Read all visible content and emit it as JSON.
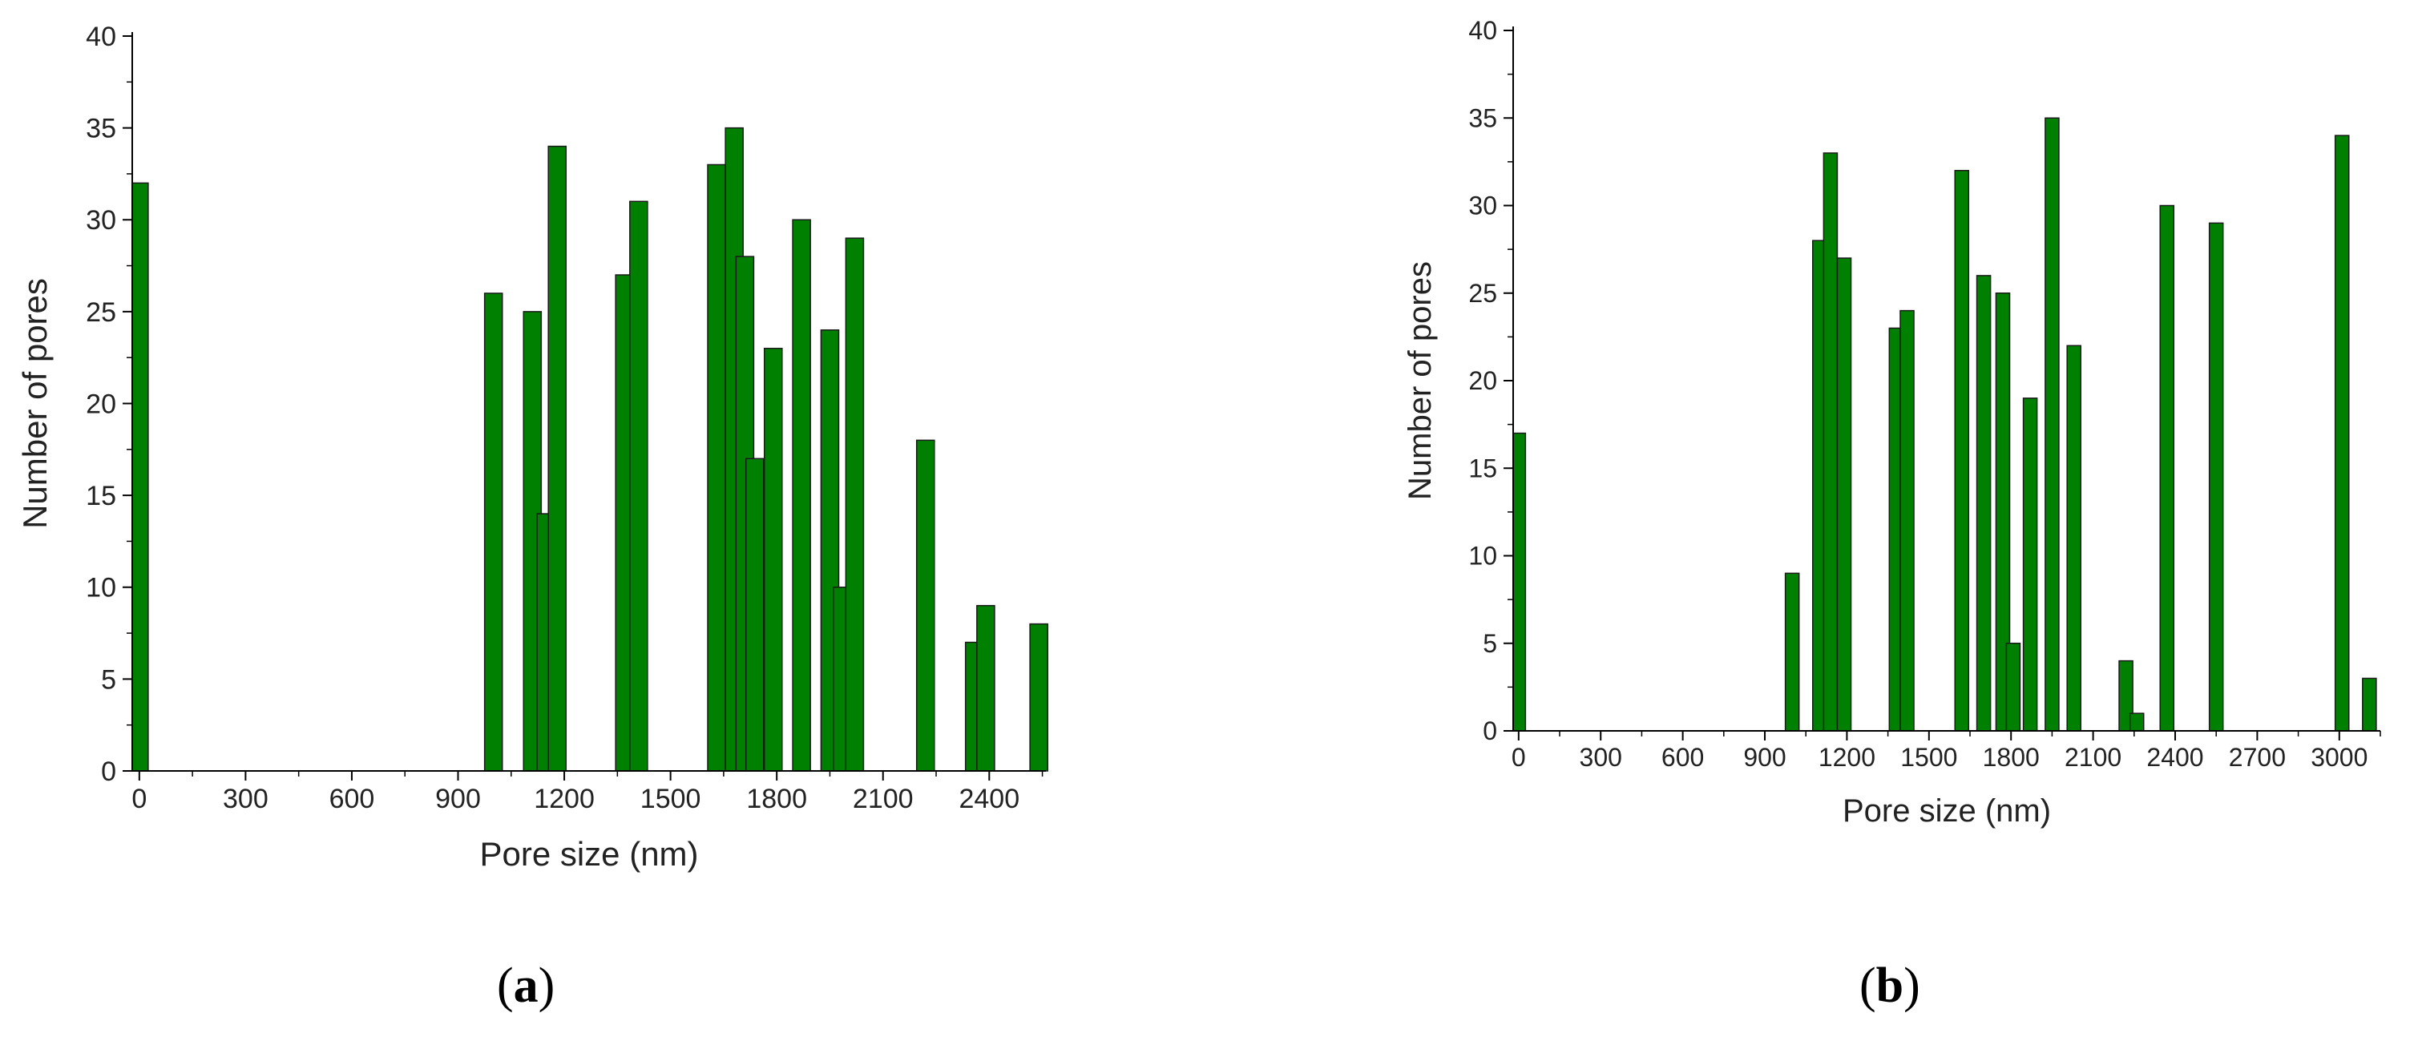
{
  "colors": {
    "bar_fill": "#008000",
    "bar_stroke": "#1a1a1a",
    "axis": "#000000"
  },
  "panel_labels": {
    "a": {
      "open": "(",
      "letter": "a",
      "close": ")"
    },
    "b": {
      "open": "(",
      "letter": "b",
      "close": ")"
    }
  },
  "chart_data": [
    {
      "type": "bar",
      "title": "",
      "xlabel": "Pore size (nm)",
      "ylabel": "Number of pores",
      "xlim": [
        -20,
        2560
      ],
      "ylim": [
        0,
        40
      ],
      "xticks": [
        0,
        300,
        600,
        900,
        1200,
        1500,
        1800,
        2100,
        2400
      ],
      "yticks": [
        0,
        5,
        10,
        15,
        20,
        25,
        30,
        35,
        40
      ],
      "bar_width_nm": 50,
      "bars": [
        {
          "x": 0,
          "y": 32
        },
        {
          "x": 1000,
          "y": 26
        },
        {
          "x": 1110,
          "y": 25
        },
        {
          "x": 1148,
          "y": 14
        },
        {
          "x": 1180,
          "y": 34
        },
        {
          "x": 1370,
          "y": 27
        },
        {
          "x": 1410,
          "y": 31
        },
        {
          "x": 1630,
          "y": 33
        },
        {
          "x": 1680,
          "y": 35
        },
        {
          "x": 1710,
          "y": 28
        },
        {
          "x": 1738,
          "y": 17
        },
        {
          "x": 1790,
          "y": 23
        },
        {
          "x": 1870,
          "y": 30
        },
        {
          "x": 1950,
          "y": 24
        },
        {
          "x": 1985,
          "y": 10
        },
        {
          "x": 2020,
          "y": 29
        },
        {
          "x": 2220,
          "y": 18
        },
        {
          "x": 2358,
          "y": 7
        },
        {
          "x": 2390,
          "y": 9
        },
        {
          "x": 2540,
          "y": 8
        }
      ],
      "grid": false,
      "legend": "none"
    },
    {
      "type": "bar",
      "title": "",
      "xlabel": "Pore size (nm)",
      "ylabel": "Number of pores",
      "xlim": [
        -20,
        3150
      ],
      "ylim": [
        0,
        40
      ],
      "xticks": [
        0,
        300,
        600,
        900,
        1200,
        1500,
        1800,
        2100,
        2400,
        2700,
        3000
      ],
      "yticks": [
        0,
        5,
        10,
        15,
        20,
        25,
        30,
        35,
        40
      ],
      "bar_width_nm": 50,
      "bars": [
        {
          "x": 0,
          "y": 17
        },
        {
          "x": 1000,
          "y": 9
        },
        {
          "x": 1100,
          "y": 28
        },
        {
          "x": 1140,
          "y": 33
        },
        {
          "x": 1190,
          "y": 27
        },
        {
          "x": 1380,
          "y": 23
        },
        {
          "x": 1420,
          "y": 24
        },
        {
          "x": 1620,
          "y": 32
        },
        {
          "x": 1700,
          "y": 26
        },
        {
          "x": 1770,
          "y": 25
        },
        {
          "x": 1808,
          "y": 5
        },
        {
          "x": 1870,
          "y": 19
        },
        {
          "x": 1950,
          "y": 35
        },
        {
          "x": 2030,
          "y": 22
        },
        {
          "x": 2220,
          "y": 4
        },
        {
          "x": 2260,
          "y": 1
        },
        {
          "x": 2370,
          "y": 30
        },
        {
          "x": 2550,
          "y": 29
        },
        {
          "x": 3010,
          "y": 34
        },
        {
          "x": 3110,
          "y": 3
        }
      ],
      "grid": false,
      "legend": "none"
    }
  ]
}
